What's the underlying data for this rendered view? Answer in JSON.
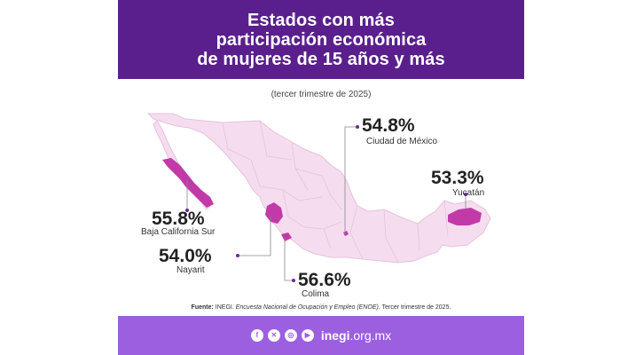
{
  "header": {
    "title_lines": [
      "Estados con más",
      "participación económica",
      "de mujeres de 15 años y más"
    ]
  },
  "subtitle": "(tercer trimestre de 2025)",
  "states": [
    {
      "id": "cdmx",
      "name": "Ciudad de México",
      "value": "54.8%"
    },
    {
      "id": "yucatan",
      "name": "Yucatán",
      "value": "53.3%"
    },
    {
      "id": "bcs",
      "name": "Baja California Sur",
      "value": "55.8%"
    },
    {
      "id": "nayarit",
      "name": "Nayarit",
      "value": "54.0%"
    },
    {
      "id": "colima",
      "name": "Colima",
      "value": "56.6%"
    }
  ],
  "source": {
    "label": "Fuente:",
    "text_before": " INEGI. ",
    "survey": "Encuesta Nacional de Ocupación y Empleo (ENOE)",
    "text_after": ". Tercer trimestre de 2025."
  },
  "footer": {
    "icons": [
      "facebook-icon",
      "x-icon",
      "instagram-icon",
      "youtube-icon"
    ],
    "site_bold": "inegi",
    "site_rest": ".org.mx"
  },
  "colors": {
    "header_bg": "#5a1f8c",
    "footer_bg": "#9b5fe0",
    "map_fill": "#f6dcef",
    "highlight": "#c23aa8",
    "leader_line": "#888888"
  }
}
